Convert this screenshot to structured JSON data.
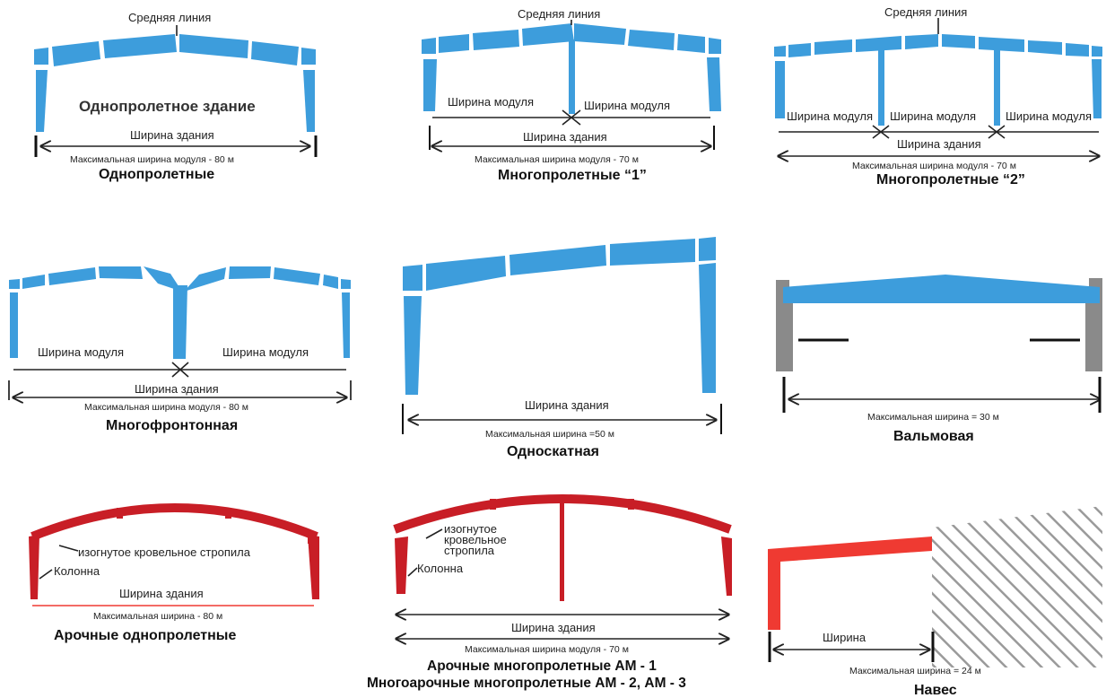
{
  "colors": {
    "steel_blue": "#3d9ddc",
    "arch_red": "#c81e26",
    "canopy_red": "#ef3a32",
    "wall_gray": "#8a8a8a"
  },
  "d1": {
    "centerline": "Средняя линия",
    "inner": "Однопролетное здание",
    "building_width": "Ширина здания",
    "max_width": "Максимальная ширина модуля - 80 м",
    "title": "Однопролетные"
  },
  "d2": {
    "centerline": "Средняя линия",
    "module_left": "Ширина модуля",
    "module_right": "Ширина модуля",
    "building_width": "Ширина здания",
    "max_width": "Максимальная  ширина модуля - 70 м",
    "title": "Многопролетные “1”"
  },
  "d3": {
    "centerline": "Средняя линия",
    "module_1": "Ширина модуля",
    "module_2": "Ширина модуля",
    "module_3": "Ширина модуля",
    "building_width": "Ширина здания",
    "max_width": "Максимальная ширина модуля - 70 м",
    "title": "Многопролетные “2”"
  },
  "d4": {
    "module_left": "Ширина модуля",
    "module_right": "Ширина модуля",
    "building_width": "Ширина здания",
    "max_width": "Максимальная ширина модуля - 80 м",
    "title": "Многофронтонная"
  },
  "d5": {
    "building_width": "Ширина здания",
    "max_width": "Максимальная ширина =50  м",
    "title": "Односкатная"
  },
  "d6": {
    "max_width": "Максимальная ширина = 30  м",
    "title": "Вальмовая"
  },
  "d7": {
    "rafter": "изогнутое кровельное стропила",
    "column": "Колонна",
    "building_width": "Ширина здания",
    "max_width": "Максимальная ширина  - 80 м",
    "title": "Арочные однопролетные"
  },
  "d8": {
    "rafter_l1": "изогнутое",
    "rafter_l2": "кровельное",
    "rafter_l3": "стропила",
    "column": "Колонна",
    "building_width": "Ширина здания",
    "max_width": "Максимальная ширина модуля - 70 м",
    "title_1": "Арочные многопролетные АМ - 1",
    "title_2": "Многоарочные многопролетные АМ - 2, АМ - 3"
  },
  "d9": {
    "width": "Ширина",
    "max_width": "Максимальная ширина = 24 м",
    "title": "Навес"
  }
}
